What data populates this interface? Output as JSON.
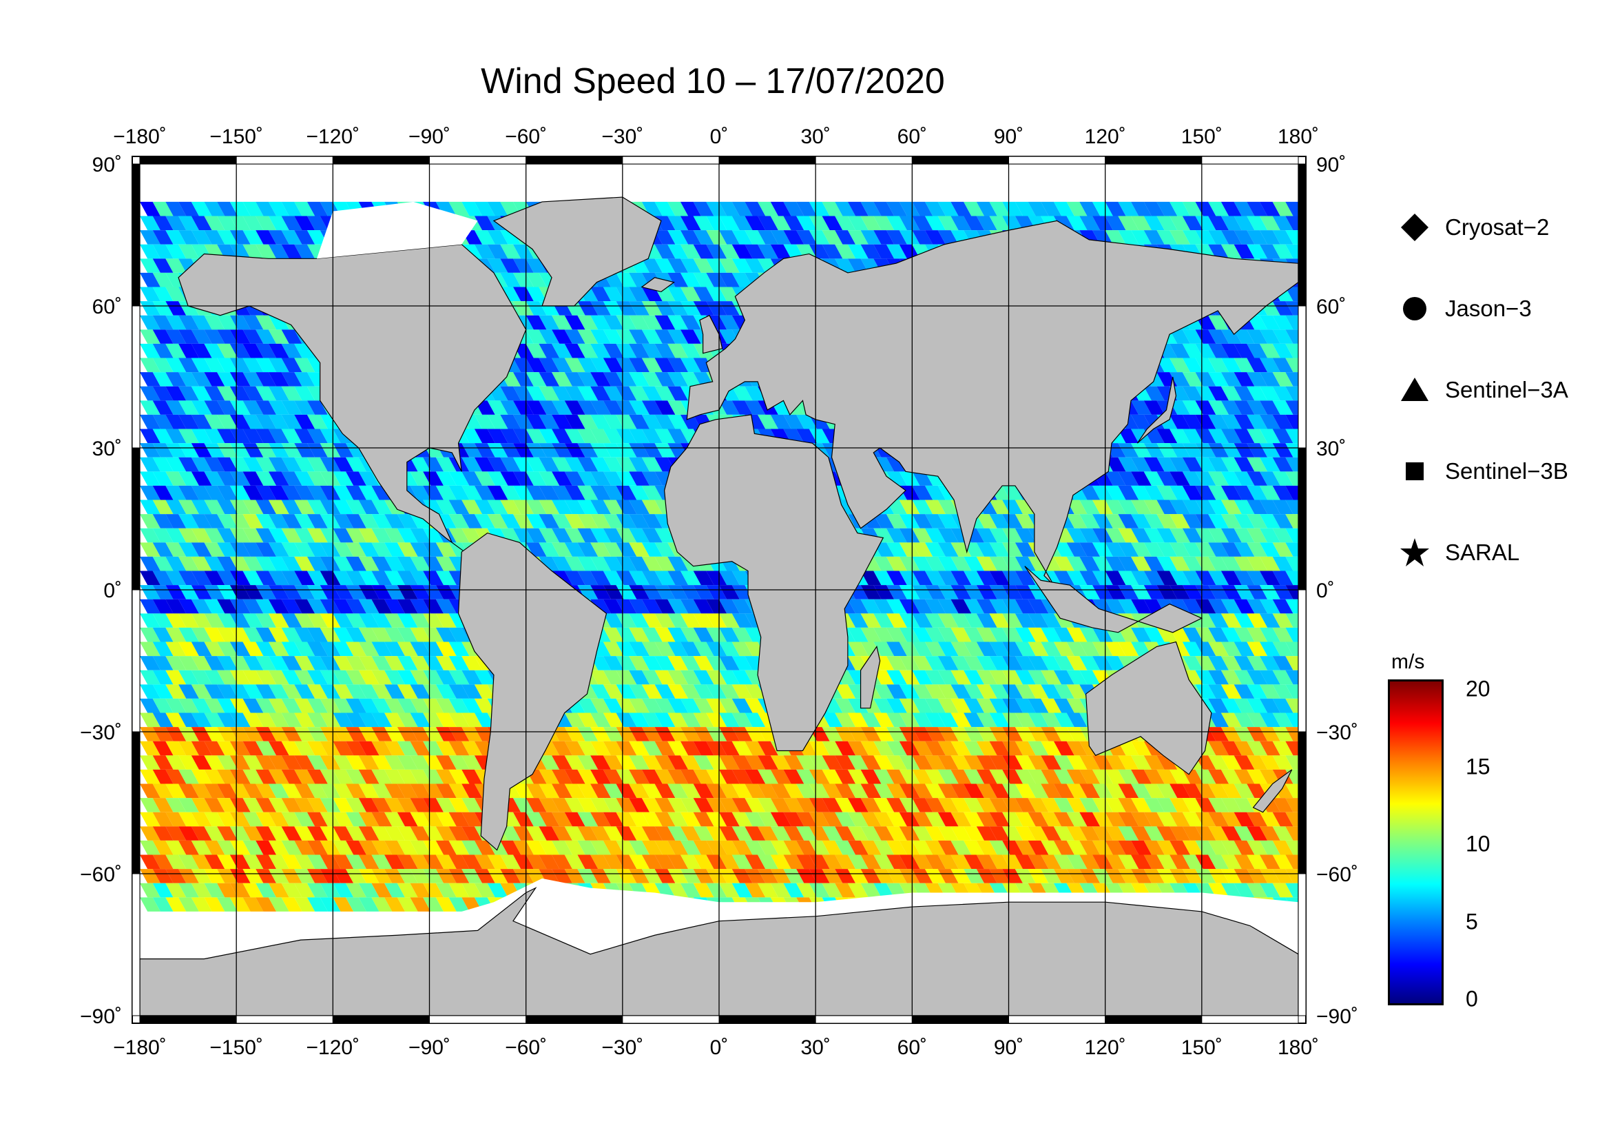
{
  "title": "Wind Speed 10 – 17/07/2020",
  "axes": {
    "lon_ticks": [
      "−180˚",
      "−150˚",
      "−120˚",
      "−90˚",
      "−60˚",
      "−30˚",
      "0˚",
      "30˚",
      "60˚",
      "90˚",
      "120˚",
      "150˚",
      "180˚"
    ],
    "lat_ticks": [
      "90˚",
      "60˚",
      "30˚",
      "0˚",
      "−30˚",
      "−60˚",
      "−90˚"
    ],
    "lon_range": [
      -180,
      180
    ],
    "lat_range": [
      -90,
      90
    ],
    "grid": true
  },
  "legend": {
    "placement": "right",
    "items": [
      {
        "label": "Cryosat−2",
        "icon": "diamond"
      },
      {
        "label": "Jason−3",
        "icon": "circle"
      },
      {
        "label": "Sentinel−3A",
        "icon": "triangle"
      },
      {
        "label": "Sentinel−3B",
        "icon": "square"
      },
      {
        "label": "SARAL",
        "icon": "star"
      }
    ]
  },
  "colorbar": {
    "unit": "m/s",
    "ticks": [
      "20",
      "15",
      "10",
      "5",
      "0"
    ],
    "range": [
      0,
      20
    ],
    "colormap": "jet"
  },
  "colors": {
    "land": "#bebebe",
    "sea_ice": "#ffffff",
    "frame": "#000000"
  }
}
